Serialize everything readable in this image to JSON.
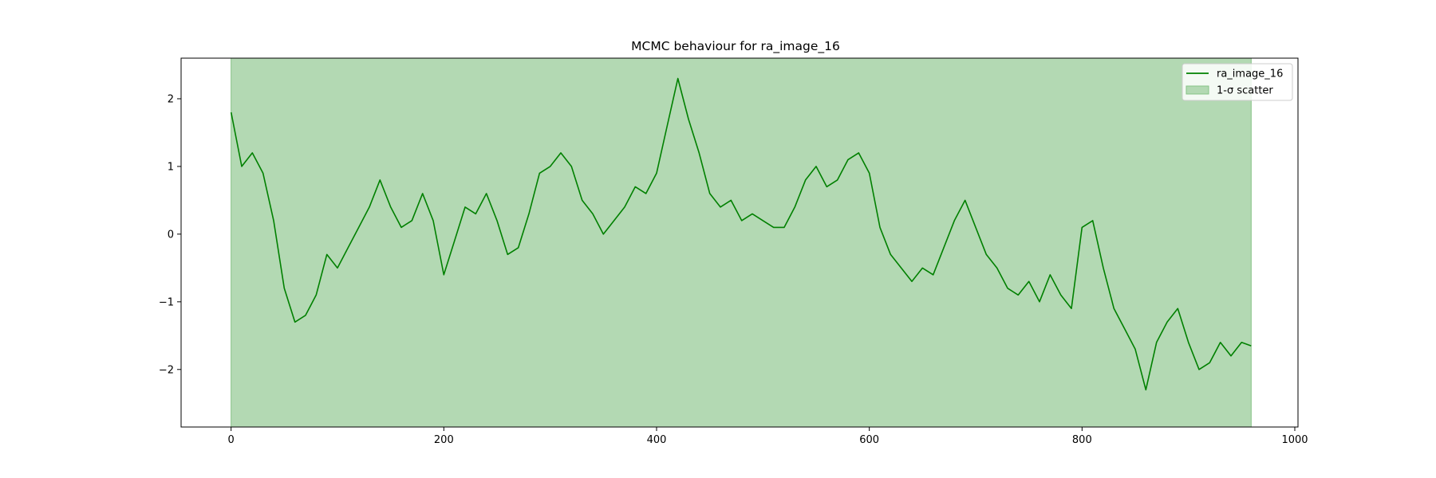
{
  "chart_data": {
    "type": "line",
    "title": "MCMC behaviour for ra_image_16",
    "xlabel": "",
    "ylabel": "",
    "xlim": [
      -47,
      1003
    ],
    "ylim": [
      -2.85,
      2.6
    ],
    "xticks": [
      0,
      200,
      400,
      600,
      800,
      1000
    ],
    "yticks": [
      -2,
      -1,
      0,
      1,
      2
    ],
    "grid": false,
    "legend": {
      "placement": "upper right",
      "entries": [
        {
          "label": "ra_image_16",
          "kind": "line"
        },
        {
          "label": "1-σ scatter",
          "kind": "patch"
        }
      ]
    },
    "colors": {
      "line": "#008000",
      "band": "#b3d9b3",
      "band_edge": "#86c286"
    },
    "band": {
      "x_start": 0,
      "x_end": 959,
      "y_low": -2.85,
      "y_high": 2.6
    },
    "series": [
      {
        "name": "ra_image_16",
        "x": [
          0,
          10,
          20,
          30,
          40,
          50,
          60,
          70,
          80,
          90,
          100,
          110,
          120,
          130,
          140,
          150,
          160,
          170,
          180,
          190,
          200,
          210,
          220,
          230,
          240,
          250,
          260,
          270,
          280,
          290,
          300,
          310,
          320,
          330,
          340,
          350,
          360,
          370,
          380,
          390,
          400,
          410,
          420,
          430,
          440,
          450,
          460,
          470,
          480,
          490,
          500,
          510,
          520,
          530,
          540,
          550,
          560,
          570,
          580,
          590,
          600,
          610,
          620,
          630,
          640,
          650,
          660,
          670,
          680,
          690,
          700,
          710,
          720,
          730,
          740,
          750,
          760,
          770,
          780,
          790,
          800,
          810,
          820,
          830,
          840,
          850,
          860,
          870,
          880,
          890,
          900,
          910,
          920,
          930,
          940,
          950,
          959
        ],
        "values": [
          1.8,
          1.0,
          1.2,
          0.9,
          0.2,
          -0.8,
          -1.3,
          -1.2,
          -0.9,
          -0.3,
          -0.5,
          -0.2,
          0.1,
          0.4,
          0.8,
          0.4,
          0.1,
          0.2,
          0.6,
          0.2,
          -0.6,
          -0.1,
          0.4,
          0.3,
          0.6,
          0.2,
          -0.3,
          -0.2,
          0.3,
          0.9,
          1.0,
          1.2,
          1.0,
          0.5,
          0.3,
          0.0,
          0.2,
          0.4,
          0.7,
          0.6,
          0.9,
          1.6,
          2.3,
          1.7,
          1.2,
          0.6,
          0.4,
          0.5,
          0.2,
          0.3,
          0.2,
          0.1,
          0.1,
          0.4,
          0.8,
          1.0,
          0.7,
          0.8,
          1.1,
          1.2,
          0.9,
          0.1,
          -0.3,
          -0.5,
          -0.7,
          -0.5,
          -0.6,
          -0.2,
          0.2,
          0.5,
          0.1,
          -0.3,
          -0.5,
          -0.8,
          -0.9,
          -0.7,
          -1.0,
          -0.6,
          -0.9,
          -1.1,
          0.1,
          0.2,
          -0.5,
          -1.1,
          -1.4,
          -1.7,
          -2.3,
          -1.6,
          -1.3,
          -1.1,
          -1.6,
          -2.0,
          -1.9,
          -1.6,
          -1.8,
          -1.6,
          -1.65
        ]
      }
    ]
  }
}
